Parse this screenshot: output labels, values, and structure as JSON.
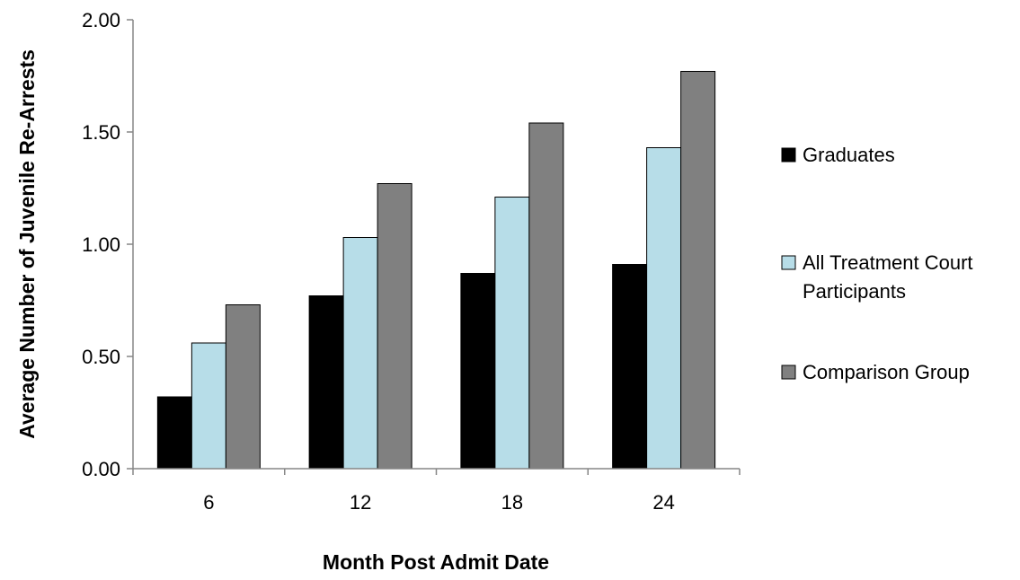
{
  "chart_data": {
    "type": "bar",
    "title": "",
    "xlabel": "Month Post Admit Date",
    "ylabel": "Average Number of Juvenile Re-Arrests",
    "categories": [
      "6",
      "12",
      "18",
      "24"
    ],
    "ylim": [
      0,
      2
    ],
    "y_ticks": [
      "0.00",
      "0.50",
      "1.00",
      "1.50",
      "2.00"
    ],
    "grid": false,
    "legend_position": "right",
    "series": [
      {
        "name": "Graduates",
        "color": "#000000",
        "values": [
          0.32,
          0.77,
          0.87,
          0.91
        ]
      },
      {
        "name": "All Treatment Court Participants",
        "legend_lines": [
          "All Treatment Court",
          "Participants"
        ],
        "color": "#b7dde8",
        "values": [
          0.56,
          1.03,
          1.21,
          1.43
        ]
      },
      {
        "name": "Comparison Group",
        "color": "#808080",
        "values": [
          0.73,
          1.27,
          1.54,
          1.77
        ]
      }
    ]
  }
}
